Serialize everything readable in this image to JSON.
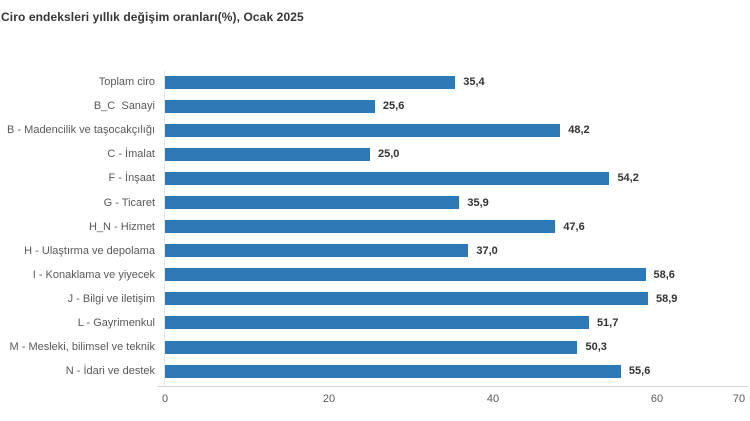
{
  "title": "Ciro endeksleri yıllık değişim oranları(%), Ocak 2025",
  "chart_data": {
    "type": "bar",
    "orientation": "horizontal",
    "title": "Ciro endeksleri yıllık değişim oranları(%), Ocak 2025",
    "categories": [
      "Toplam ciro",
      "B_C  Sanayi",
      "B - Madencilik ve taşocakçılığı",
      "C - İmalat",
      "F - İnşaat",
      "G - Ticaret",
      "H_N - Hizmet",
      "H - Ulaştırma ve depolama",
      "I - Konaklama ve yiyecek",
      "J - Bilgi ve iletişim",
      "L - Gayrimenkul",
      "M - Mesleki, bilimsel ve teknik",
      "N - İdari ve destek"
    ],
    "values": [
      35.4,
      25.6,
      48.2,
      25.0,
      54.2,
      35.9,
      47.6,
      37.0,
      58.6,
      58.9,
      51.7,
      50.3,
      55.6
    ],
    "value_labels": [
      "35,4",
      "25,6",
      "48,2",
      "25,0",
      "54,2",
      "35,9",
      "47,6",
      "37,0",
      "58,6",
      "58,9",
      "51,7",
      "50,3",
      "55,6"
    ],
    "xlabel": "",
    "ylabel": "",
    "xlim": [
      0,
      70
    ],
    "xticks": [
      0,
      20,
      40,
      60,
      70
    ],
    "xtick_labels": [
      "0",
      "20",
      "40",
      "60",
      "70"
    ],
    "grid": false,
    "legend": false,
    "bar_color": "#2e79b5"
  },
  "colors": {
    "bar": "#2e79b5",
    "title_text": "#363636",
    "category_text": "#595959",
    "value_text": "#333333",
    "axis_line": "#d6d6d6",
    "background": "#ffffff"
  }
}
